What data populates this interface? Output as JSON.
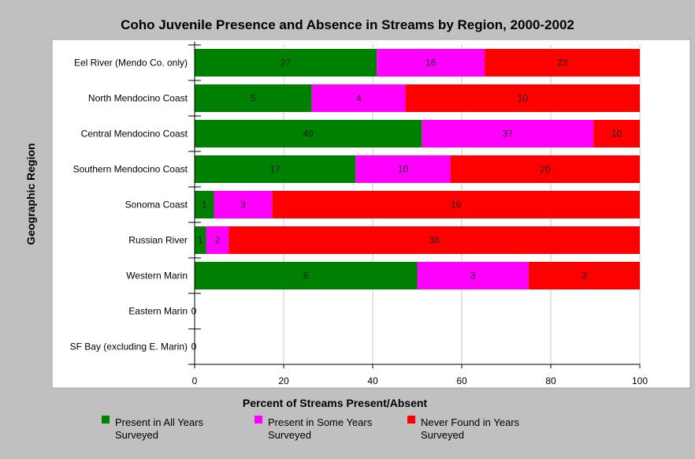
{
  "chart_data": {
    "type": "bar",
    "orientation": "horizontal",
    "stacking": "percent",
    "title": "Coho Juvenile Presence and Absence in Streams by Region, 2000-2002",
    "xlabel": "Percent of Streams Present/Absent",
    "ylabel": "Geographic Region",
    "xlim": [
      0,
      100
    ],
    "xticks": [
      0,
      20,
      40,
      60,
      80,
      100
    ],
    "grid": true,
    "legend_position": "bottom",
    "categories": [
      "Eel River (Mendo Co. only)",
      "North Mendocino Coast",
      "Central Mendocino Coast",
      "Southern Mendocino Coast",
      "Sonoma Coast",
      "Russian River",
      "Western Marin",
      "Eastern Marin",
      "SF Bay (excluding E. Marin)"
    ],
    "series": [
      {
        "name": "Present in All Years Surveyed",
        "color": "#008000",
        "values": [
          27,
          5,
          49,
          17,
          1,
          1,
          6,
          0,
          0
        ]
      },
      {
        "name": "Present in Some Years Surveyed",
        "color": "#ff00ff",
        "values": [
          16,
          4,
          37,
          10,
          3,
          2,
          3,
          0,
          0
        ]
      },
      {
        "name": "Never Found in Years Surveyed",
        "color": "#ff0000",
        "values": [
          23,
          10,
          10,
          20,
          19,
          36,
          3,
          0,
          0
        ]
      }
    ],
    "legend_lines": [
      [
        "Present in All Years",
        "Surveyed"
      ],
      [
        "Present in Some Years",
        "Surveyed"
      ],
      [
        "Never Found in Years",
        "Surveyed"
      ]
    ]
  }
}
